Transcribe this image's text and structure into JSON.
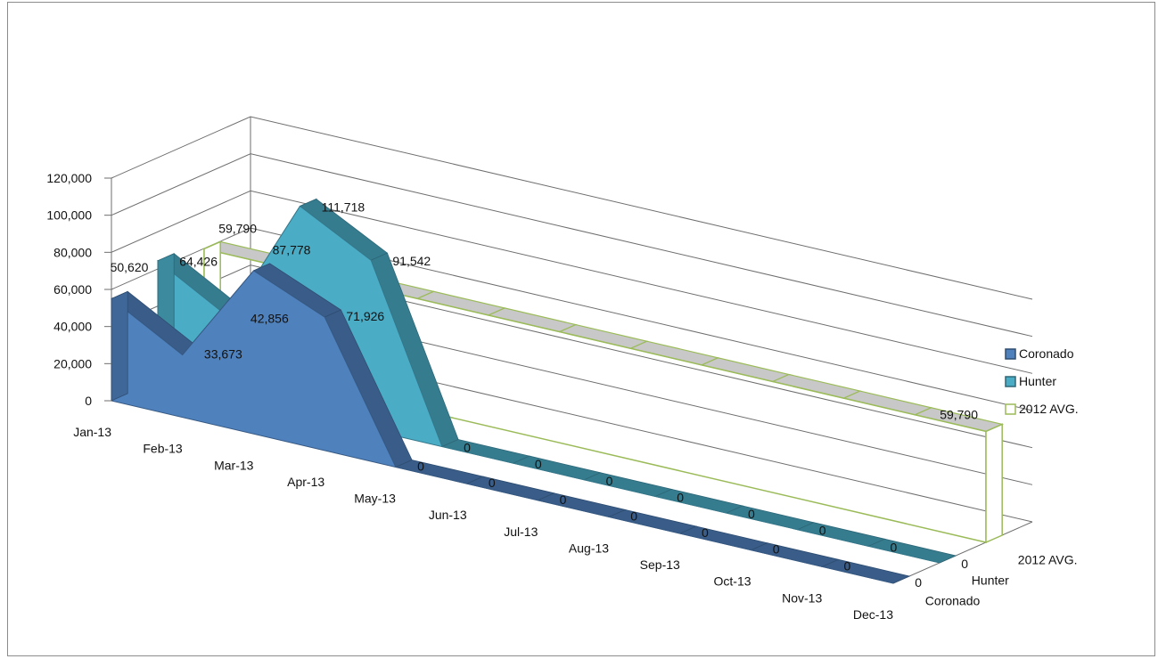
{
  "chart_data": {
    "type": "area",
    "title": "",
    "categories": [
      "Jan-13",
      "Feb-13",
      "Mar-13",
      "Apr-13",
      "May-13",
      "Jun-13",
      "Jul-13",
      "Aug-13",
      "Sep-13",
      "Oct-13",
      "Nov-13",
      "Dec-13"
    ],
    "series": [
      {
        "name": "Coronado",
        "type": "area",
        "values": [
          55000,
          33673,
          88000,
          71926,
          0,
          0,
          0,
          0,
          0,
          0,
          0,
          0
        ],
        "labels": [
          "",
          "33,673",
          "",
          "71,926",
          "0",
          "0",
          "0",
          "0",
          "0",
          "0",
          "0",
          "0"
        ]
      },
      {
        "name": "Hunter",
        "type": "area",
        "values": [
          64426,
          42856,
          111718,
          91542,
          0,
          0,
          0,
          0,
          0,
          0,
          0,
          0
        ],
        "labels": [
          "64,426",
          "42,856",
          "111,718",
          "91,542",
          "0",
          "0",
          "0",
          "0",
          "0",
          "0",
          "0",
          "0"
        ]
      },
      {
        "name": "2012 AVG.",
        "type": "line",
        "values": [
          59790,
          59790,
          59790,
          59790,
          59790,
          59790,
          59790,
          59790,
          59790,
          59790,
          59790,
          59790
        ],
        "labels": [
          "59,790",
          "",
          "",
          "",
          "",
          "",
          "",
          "",
          "",
          "",
          "",
          "59,790"
        ]
      }
    ],
    "extra_labels": [
      "87,778",
      "50,620"
    ],
    "yticks": [
      "0",
      "20,000",
      "40,000",
      "60,000",
      "80,000",
      "100,000",
      "120,000"
    ],
    "ylim": [
      0,
      120000
    ],
    "depth_labels": [
      "Coronado",
      "Hunter",
      "2012 AVG."
    ],
    "legend": {
      "position": "right",
      "entries": [
        "Coronado",
        "Hunter",
        "2012 AVG."
      ]
    },
    "colors": {
      "coronado": "#4f81bd",
      "hunter": "#4bacc6",
      "avg_border": "#9bbb59",
      "avg_fill": "#c8c8c8"
    }
  }
}
